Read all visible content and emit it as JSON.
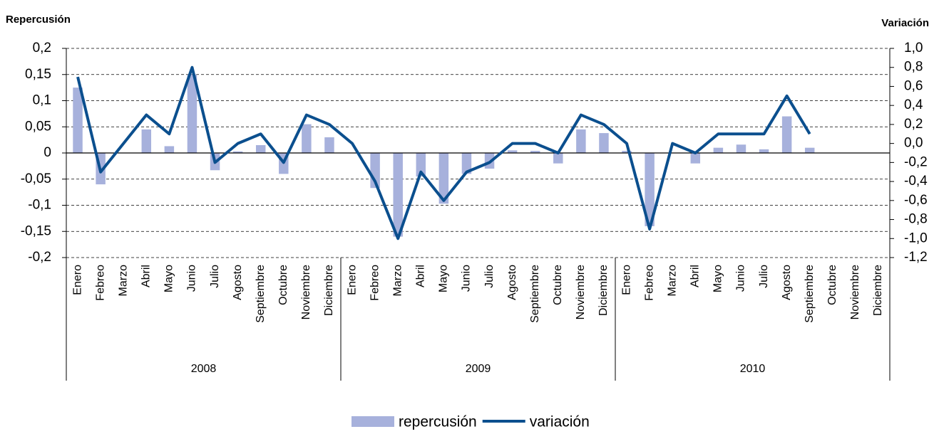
{
  "chart_data": {
    "type": "bar_line",
    "y_title": "Repercusión",
    "y2_title": "Variación",
    "categories": [
      "Enero",
      "Febreo",
      "Marzo",
      "Abril",
      "Mayo",
      "Junio",
      "Julio",
      "Agosto",
      "Septiembre",
      "Octubre",
      "Noviembre",
      "Diciembre",
      "Enero",
      "Febreo",
      "Marzo",
      "Abril",
      "Mayo",
      "Junio",
      "Julio",
      "Agosto",
      "Septiembre",
      "Octubre",
      "Noviembre",
      "Diciembre",
      "Enero",
      "Febreo",
      "Marzo",
      "Abril",
      "Mayo",
      "Junio",
      "Julio",
      "Agosto",
      "Septiembre",
      "Octubre",
      "Noviembre",
      "Diciembre"
    ],
    "category_groups": [
      {
        "label": "2008",
        "count": 12
      },
      {
        "label": "2009",
        "count": 12
      },
      {
        "label": "2010",
        "count": 12
      }
    ],
    "series": [
      {
        "name": "repercusión",
        "type": "bar",
        "color": "#a7b1dc",
        "values": [
          0.125,
          -0.06,
          0,
          0.045,
          0.013,
          0.15,
          -0.033,
          0.003,
          0.015,
          -0.04,
          0.055,
          0.03,
          0,
          -0.067,
          -0.16,
          -0.045,
          -0.097,
          -0.04,
          -0.03,
          0.005,
          0.004,
          -0.02,
          0.045,
          0.038,
          0.004,
          -0.14,
          0,
          -0.02,
          0.01,
          0.016,
          0.007,
          0.07,
          0.01,
          null,
          null,
          null
        ]
      },
      {
        "name": "variación",
        "type": "line",
        "axis": "y2",
        "color": "#0b4f8e",
        "values": [
          0.7,
          -0.3,
          0,
          0.3,
          0.1,
          0.8,
          -0.2,
          0,
          0.1,
          -0.2,
          0.3,
          0.2,
          0,
          -0.4,
          -1.0,
          -0.3,
          -0.6,
          -0.3,
          -0.2,
          0,
          0,
          -0.1,
          0.3,
          0.2,
          0,
          -0.9,
          0,
          -0.1,
          0.1,
          0.1,
          0.1,
          0.5,
          0.1,
          null,
          null,
          null
        ]
      }
    ],
    "ylim": [
      -0.2,
      0.2
    ],
    "yticks": [
      {
        "value": 0.2,
        "label": "0,2"
      },
      {
        "value": 0.15,
        "label": "0,15"
      },
      {
        "value": 0.1,
        "label": "0,1"
      },
      {
        "value": 0.05,
        "label": "0,05"
      },
      0,
      {
        "value": -0.05,
        "label": "-0,05"
      },
      {
        "value": -0.1,
        "label": "-0,1"
      },
      {
        "value": -0.15,
        "label": "-0,15"
      },
      {
        "value": -0.2,
        "label": "-0,2"
      }
    ],
    "y2lim": [
      -1.2,
      1.0
    ],
    "y2ticks": [
      {
        "value": 1.0,
        "label": "1,0"
      },
      {
        "value": 0.8,
        "label": "0,8"
      },
      {
        "value": 0.6,
        "label": "0,6"
      },
      {
        "value": 0.4,
        "label": "0,4"
      },
      {
        "value": 0.2,
        "label": "0,2"
      },
      {
        "value": 0.0,
        "label": "0,0"
      },
      {
        "value": -0.2,
        "label": "-0,2"
      },
      {
        "value": -0.4,
        "label": "-0,4"
      },
      {
        "value": -0.6,
        "label": "-0,6"
      },
      {
        "value": -0.8,
        "label": "-0,8"
      },
      {
        "value": -1.0,
        "label": "-1,0"
      },
      {
        "value": -1.2,
        "label": "-1,2"
      }
    ],
    "grid": true,
    "legend": "bottom"
  }
}
